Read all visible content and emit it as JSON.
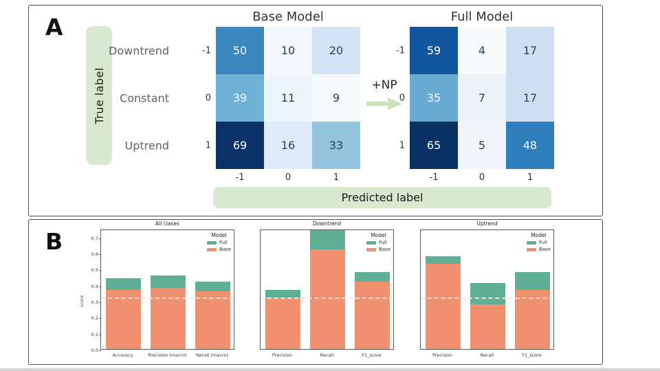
{
  "panel_a": {
    "label": "A",
    "true_label_text": "True label",
    "predicted_label_text": "Predicted label",
    "arrow_label": "+NP",
    "row_labels": [
      "Downtrend",
      "Constant",
      "Uptrend"
    ],
    "row_ticks": [
      "-1",
      "0",
      "1"
    ],
    "col_ticks": [
      "-1",
      "0",
      "1"
    ],
    "matrices": [
      {
        "title": "Base Model",
        "cell_colors": [
          [
            "#3a87c0",
            "#f1f7fd",
            "#d3e3f3"
          ],
          [
            "#70b1d7",
            "#ebf3fb",
            "#f5fafe"
          ],
          [
            "#0a3168",
            "#ddeaf7",
            "#92c4de"
          ]
        ],
        "text_colors": [
          [
            "#ffffff",
            "#27415f",
            "#27415f"
          ],
          [
            "#f5fafd",
            "#27415f",
            "#27415f"
          ],
          [
            "#ffffff",
            "#27415f",
            "#27415f"
          ]
        ]
      },
      {
        "title": "Full Model",
        "cell_colors": [
          [
            "#1057a0",
            "#f6fafd",
            "#cfdfef"
          ],
          [
            "#6aabd4",
            "#e9f1f9",
            "#cfdfef"
          ],
          [
            "#0a3164",
            "#eff5fb",
            "#2e7ebc"
          ]
        ],
        "text_colors": [
          [
            "#ffffff",
            "#27415f",
            "#27415f"
          ],
          [
            "#f5fafd",
            "#27415f",
            "#27415f"
          ],
          [
            "#ffffff",
            "#27415f",
            "#ffffff"
          ]
        ]
      }
    ]
  },
  "panel_b": {
    "label": "B",
    "ylabel": "score",
    "legend_title": "Model",
    "legend_items": [
      "Full",
      "Base"
    ],
    "colors": {
      "full": "#5fae96",
      "base": "#f0906e",
      "baseline": "#ffe2dc"
    }
  },
  "chart_data": [
    {
      "type": "heatmap",
      "title": "Base Model",
      "x_ticks": [
        "-1",
        "0",
        "1"
      ],
      "y_ticks": [
        "-1",
        "0",
        "1"
      ],
      "y_categories": [
        "Downtrend",
        "Constant",
        "Uptrend"
      ],
      "cells": [
        [
          50,
          10,
          20
        ],
        [
          39,
          11,
          9
        ],
        [
          69,
          16,
          33
        ]
      ],
      "xlabel": "Predicted label",
      "ylabel": "True label"
    },
    {
      "type": "heatmap",
      "title": "Full Model",
      "x_ticks": [
        "-1",
        "0",
        "1"
      ],
      "y_ticks": [
        "-1",
        "0",
        "1"
      ],
      "y_categories": [
        "Downtrend",
        "Constant",
        "Uptrend"
      ],
      "cells": [
        [
          59,
          4,
          17
        ],
        [
          35,
          7,
          17
        ],
        [
          65,
          5,
          48
        ]
      ],
      "xlabel": "Predicted label",
      "ylabel": "True label"
    },
    {
      "type": "bar",
      "title": "All clases",
      "categories": [
        "Accuracy",
        "Precision (macro)",
        "Recall (macro)"
      ],
      "series": [
        {
          "name": "Full",
          "values": [
            0.44,
            0.46,
            0.42
          ]
        },
        {
          "name": "Base",
          "values": [
            0.37,
            0.38,
            0.36
          ]
        }
      ],
      "baseline": 0.33,
      "ylabel": "score",
      "ylim": [
        0,
        0.75
      ],
      "yticks": [
        0.0,
        0.1,
        0.2,
        0.3,
        0.4,
        0.5,
        0.6,
        0.7
      ],
      "legend_position": "upper right"
    },
    {
      "type": "bar",
      "title": "Downtrend",
      "categories": [
        "Precision",
        "Recall",
        "F1_score"
      ],
      "series": [
        {
          "name": "Full",
          "values": [
            0.37,
            0.74,
            0.48
          ]
        },
        {
          "name": "Base",
          "values": [
            0.32,
            0.62,
            0.42
          ]
        }
      ],
      "baseline": 0.33,
      "ylabel": "",
      "ylim": [
        0,
        0.75
      ],
      "yticks": [],
      "legend_position": "upper right"
    },
    {
      "type": "bar",
      "title": "Uptrend",
      "categories": [
        "Precision",
        "Recall",
        "F1_score"
      ],
      "series": [
        {
          "name": "Full",
          "values": [
            0.58,
            0.41,
            0.48
          ]
        },
        {
          "name": "Base",
          "values": [
            0.53,
            0.28,
            0.37
          ]
        }
      ],
      "baseline": 0.33,
      "ylabel": "",
      "ylim": [
        0,
        0.75
      ],
      "yticks": [],
      "legend_position": "upper right"
    }
  ]
}
